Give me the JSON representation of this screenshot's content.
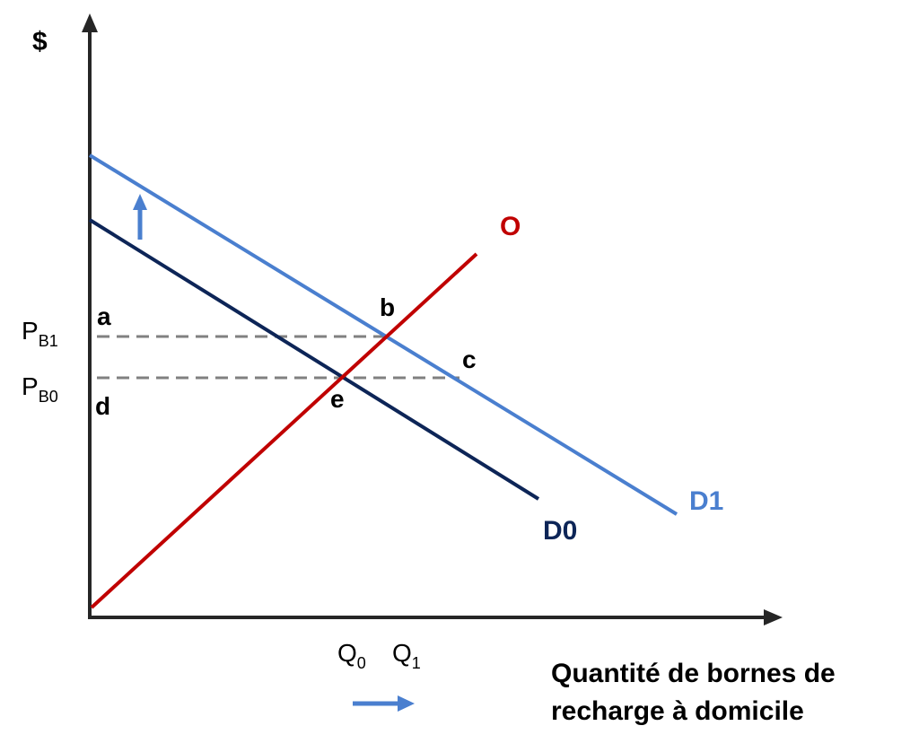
{
  "axes": {
    "y_label": "$",
    "x_label_line1": "Quantité de bornes de",
    "x_label_line2": "recharge à domicile"
  },
  "curves": {
    "supply": {
      "label": "O",
      "color": "#c00000"
    },
    "demand0": {
      "label": "D0",
      "color": "#0d2557"
    },
    "demand1": {
      "label": "D1",
      "color": "#4a7fcf"
    }
  },
  "points": {
    "a": "a",
    "b": "b",
    "c": "c",
    "d": "d",
    "e": "e"
  },
  "prices": {
    "pb1_main": "P",
    "pb1_sub": "B1",
    "pb0_main": "P",
    "pb0_sub": "B0"
  },
  "quantities": {
    "q0_main": "Q",
    "q0_sub": "0",
    "q1_main": "Q",
    "q1_sub": "1"
  },
  "colors": {
    "axis": "#262626",
    "guide": "#808080",
    "shift_arrow": "#4a7fcf"
  }
}
